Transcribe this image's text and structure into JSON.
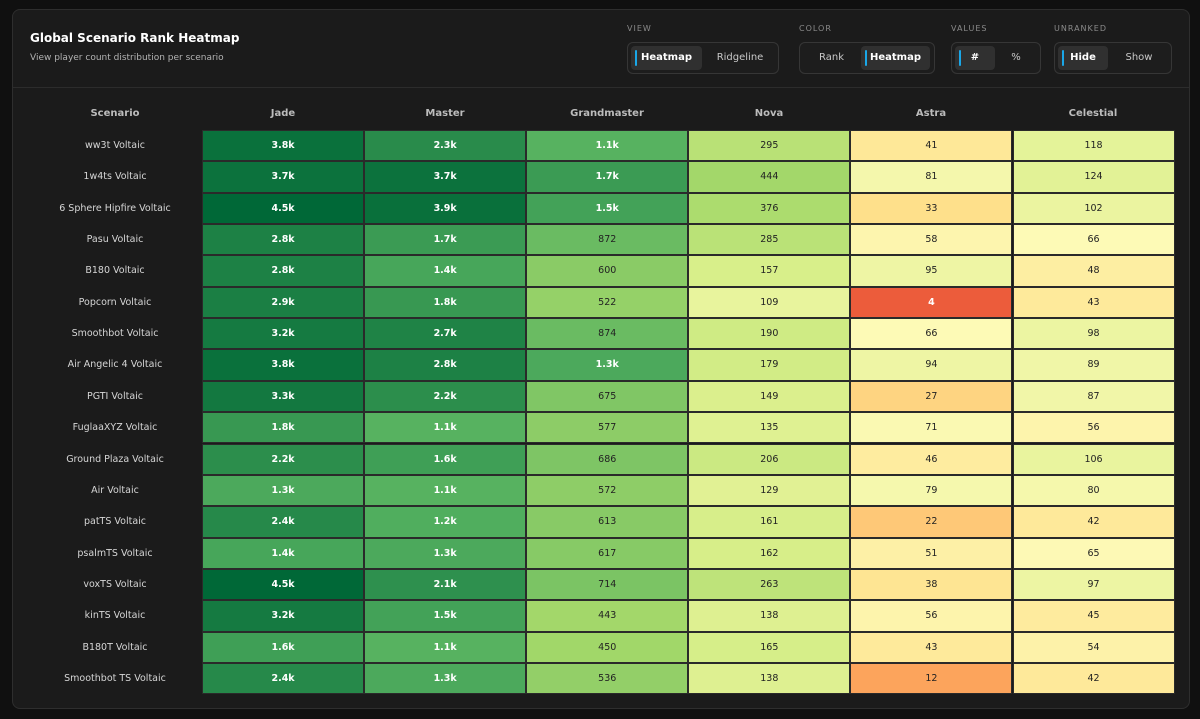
{
  "header": {
    "title": "Global Scenario Rank Heatmap",
    "subtitle": "View player count distribution per scenario"
  },
  "controls": {
    "view": {
      "label": "VIEW",
      "options": [
        "Heatmap",
        "Ridgeline"
      ],
      "active": "Heatmap"
    },
    "color": {
      "label": "COLOR",
      "options": [
        "Rank",
        "Heatmap"
      ],
      "active": "Heatmap"
    },
    "values": {
      "label": "VALUES",
      "options": [
        "#",
        "%"
      ],
      "active": "#"
    },
    "unranked": {
      "label": "UNRANKED",
      "options": [
        "Hide",
        "Show"
      ],
      "active": "Hide"
    }
  },
  "colors": {
    "accent": "#1aa7e8",
    "background": "#1b1b1b",
    "scale_low": "#a50026",
    "scale_mid": "#fdfebb",
    "scale_high": "#006837"
  },
  "chart_data": {
    "type": "heatmap",
    "title": "Global Scenario Rank Heatmap",
    "row_header": "Scenario",
    "columns": [
      "Jade",
      "Master",
      "Grandmaster",
      "Nova",
      "Astra",
      "Celestial"
    ],
    "rows": [
      {
        "scenario": "ww3t Voltaic",
        "labels": [
          "3.8k",
          "2.3k",
          "1.1k",
          "295",
          "41",
          "118"
        ],
        "values": [
          3800,
          2300,
          1100,
          295,
          41,
          118
        ]
      },
      {
        "scenario": "1w4ts Voltaic",
        "labels": [
          "3.7k",
          "3.7k",
          "1.7k",
          "444",
          "81",
          "124"
        ],
        "values": [
          3700,
          3700,
          1700,
          444,
          81,
          124
        ]
      },
      {
        "scenario": "6 Sphere Hipfire Voltaic",
        "labels": [
          "4.5k",
          "3.9k",
          "1.5k",
          "376",
          "33",
          "102"
        ],
        "values": [
          4500,
          3900,
          1500,
          376,
          33,
          102
        ]
      },
      {
        "scenario": "Pasu Voltaic",
        "labels": [
          "2.8k",
          "1.7k",
          "872",
          "285",
          "58",
          "66"
        ],
        "values": [
          2800,
          1700,
          872,
          285,
          58,
          66
        ]
      },
      {
        "scenario": "B180 Voltaic",
        "labels": [
          "2.8k",
          "1.4k",
          "600",
          "157",
          "95",
          "48"
        ],
        "values": [
          2800,
          1400,
          600,
          157,
          95,
          48
        ]
      },
      {
        "scenario": "Popcorn Voltaic",
        "labels": [
          "2.9k",
          "1.8k",
          "522",
          "109",
          "4",
          "43"
        ],
        "values": [
          2900,
          1800,
          522,
          109,
          4,
          43
        ]
      },
      {
        "scenario": "Smoothbot Voltaic",
        "labels": [
          "3.2k",
          "2.7k",
          "874",
          "190",
          "66",
          "98"
        ],
        "values": [
          3200,
          2700,
          874,
          190,
          66,
          98
        ]
      },
      {
        "scenario": "Air Angelic 4 Voltaic",
        "labels": [
          "3.8k",
          "2.8k",
          "1.3k",
          "179",
          "94",
          "89"
        ],
        "values": [
          3800,
          2800,
          1300,
          179,
          94,
          89
        ]
      },
      {
        "scenario": "PGTI Voltaic",
        "labels": [
          "3.3k",
          "2.2k",
          "675",
          "149",
          "27",
          "87"
        ],
        "values": [
          3300,
          2200,
          675,
          149,
          27,
          87
        ]
      },
      {
        "scenario": "FuglaaXYZ Voltaic",
        "labels": [
          "1.8k",
          "1.1k",
          "577",
          "135",
          "71",
          "56"
        ],
        "values": [
          1800,
          1100,
          577,
          135,
          71,
          56
        ]
      },
      {
        "scenario": "Ground Plaza Voltaic",
        "labels": [
          "2.2k",
          "1.6k",
          "686",
          "206",
          "46",
          "106"
        ],
        "values": [
          2200,
          1600,
          686,
          206,
          46,
          106
        ]
      },
      {
        "scenario": "Air Voltaic",
        "labels": [
          "1.3k",
          "1.1k",
          "572",
          "129",
          "79",
          "80"
        ],
        "values": [
          1300,
          1100,
          572,
          129,
          79,
          80
        ]
      },
      {
        "scenario": "patTS Voltaic",
        "labels": [
          "2.4k",
          "1.2k",
          "613",
          "161",
          "22",
          "42"
        ],
        "values": [
          2400,
          1200,
          613,
          161,
          22,
          42
        ]
      },
      {
        "scenario": "psalmTS Voltaic",
        "labels": [
          "1.4k",
          "1.3k",
          "617",
          "162",
          "51",
          "65"
        ],
        "values": [
          1400,
          1300,
          617,
          162,
          51,
          65
        ]
      },
      {
        "scenario": "voxTS Voltaic",
        "labels": [
          "4.5k",
          "2.1k",
          "714",
          "263",
          "38",
          "97"
        ],
        "values": [
          4500,
          2100,
          714,
          263,
          38,
          97
        ]
      },
      {
        "scenario": "kinTS Voltaic",
        "labels": [
          "3.2k",
          "1.5k",
          "443",
          "138",
          "56",
          "45"
        ],
        "values": [
          3200,
          1500,
          443,
          138,
          56,
          45
        ]
      },
      {
        "scenario": "B180T Voltaic",
        "labels": [
          "1.6k",
          "1.1k",
          "450",
          "165",
          "43",
          "54"
        ],
        "values": [
          1600,
          1100,
          450,
          165,
          43,
          54
        ]
      },
      {
        "scenario": "Smoothbot TS Voltaic",
        "labels": [
          "2.4k",
          "1.3k",
          "536",
          "138",
          "12",
          "42"
        ],
        "values": [
          2400,
          1300,
          536,
          138,
          12,
          42
        ]
      }
    ]
  }
}
